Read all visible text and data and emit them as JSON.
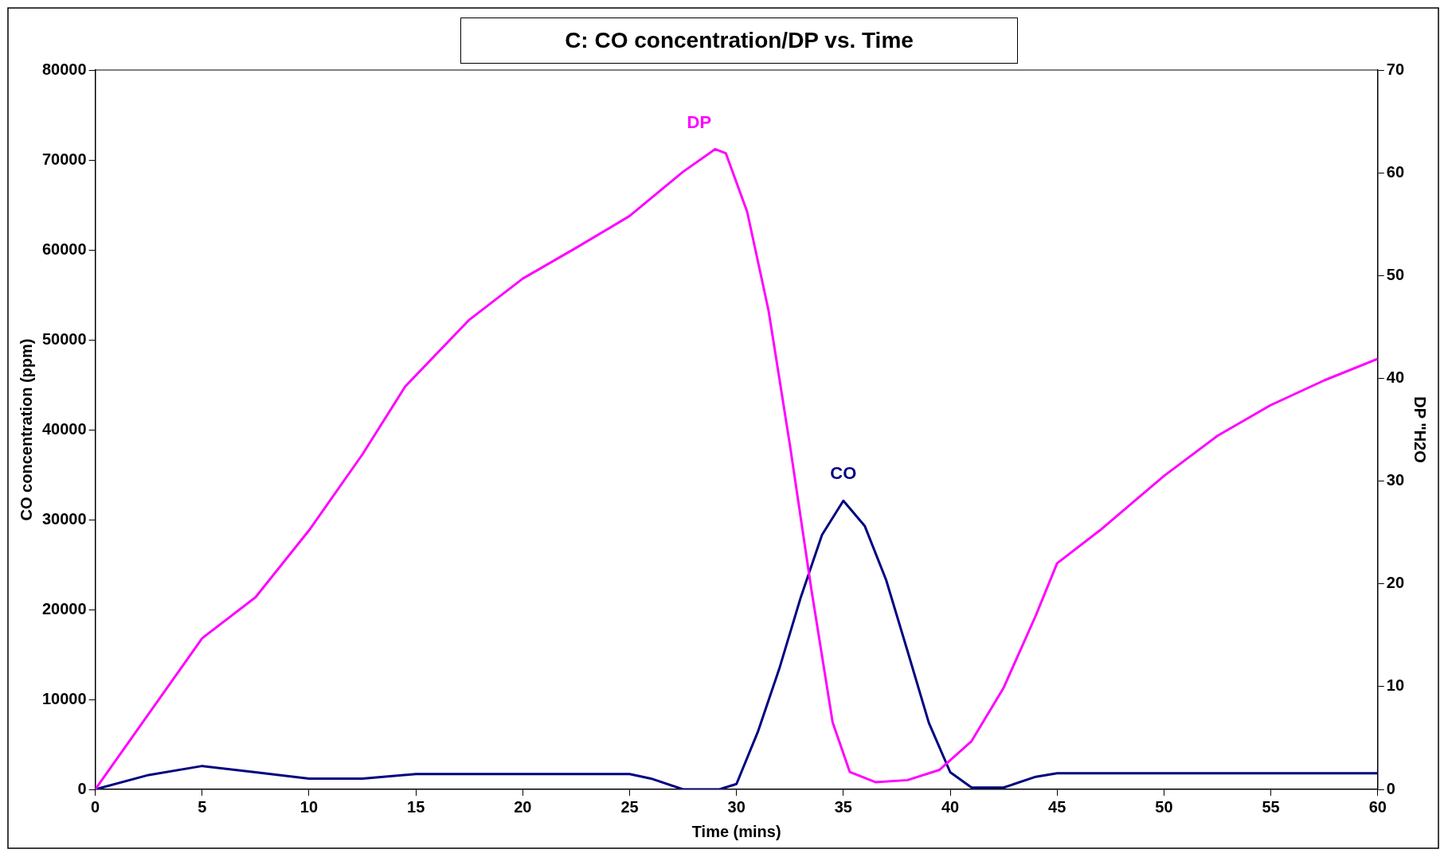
{
  "chart_data": {
    "type": "line",
    "title": "C: CO concentration/DP vs. Time",
    "xlabel": "Time (mins)",
    "ylabel": "CO concentration (ppm)",
    "y2label": "DP \"H2O",
    "xlim": [
      0,
      60
    ],
    "xticks": [
      0,
      5,
      10,
      15,
      20,
      25,
      30,
      35,
      40,
      45,
      50,
      55,
      60
    ],
    "ylim": [
      0,
      80000
    ],
    "yticks": [
      0,
      10000,
      20000,
      30000,
      40000,
      50000,
      60000,
      70000,
      80000
    ],
    "y2lim": [
      0,
      70
    ],
    "y2ticks": [
      0,
      10,
      20,
      30,
      40,
      50,
      60,
      70
    ],
    "grid": false,
    "legend": false,
    "marker": "none",
    "line_style": "solid",
    "series": [
      {
        "name": "DP",
        "color": "#ff00ff",
        "axis": "y2",
        "x": [
          0,
          5,
          7.5,
          10,
          12.5,
          14.5,
          17.5,
          20,
          22.5,
          25,
          27.5,
          29,
          29.5,
          30.5,
          31.5,
          32.5,
          33.5,
          34.5,
          35.3,
          36.5,
          38,
          39.5,
          41,
          42.5,
          44,
          45,
          47,
          50,
          52.5,
          55,
          57.5,
          60
        ],
        "values": [
          0,
          14.7,
          18.7,
          25.2,
          32.6,
          39.2,
          45.7,
          49.7,
          52.7,
          55.8,
          60.1,
          62.3,
          61.9,
          56.2,
          46.6,
          33.5,
          19.5,
          6.5,
          1.7,
          0.7,
          0.9,
          1.9,
          4.7,
          9.9,
          16.9,
          22,
          25.2,
          30.5,
          34.4,
          37.4,
          39.8,
          41.9
        ]
      },
      {
        "name": "CO",
        "color": "#000080",
        "x": [
          0,
          2.5,
          5,
          7.5,
          10,
          12.5,
          15,
          20,
          25,
          26,
          27.5,
          29.2,
          30,
          31,
          32,
          33,
          34,
          35,
          36,
          37,
          38,
          39,
          40,
          41,
          42.5,
          44,
          45,
          60
        ],
        "values": [
          0,
          1600,
          2600,
          1900,
          1200,
          1200,
          1700,
          1700,
          1700,
          1200,
          0,
          0,
          600,
          6400,
          13400,
          21300,
          28300,
          32100,
          29300,
          23300,
          15400,
          7400,
          1900,
          200,
          200,
          1400,
          1800,
          1800
        ]
      }
    ]
  }
}
